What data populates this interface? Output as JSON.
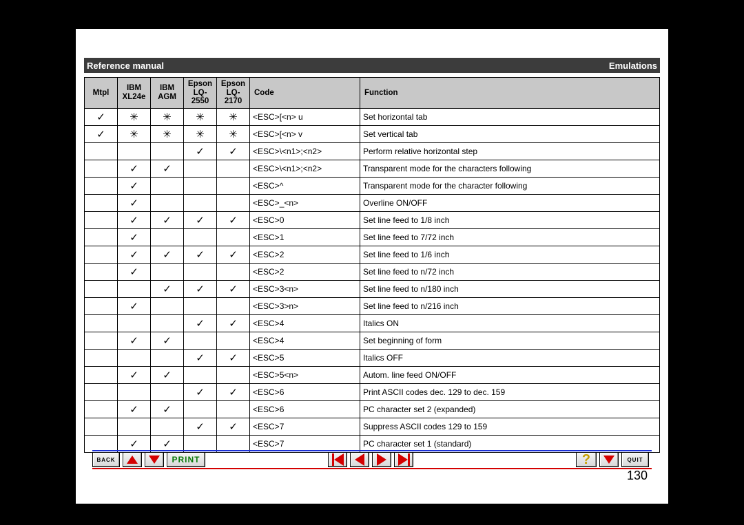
{
  "header": {
    "left": "Reference manual",
    "right": "Emulations"
  },
  "columns": [
    {
      "line1": "Mtpl",
      "line2": ""
    },
    {
      "line1": "IBM",
      "line2": "XL24e"
    },
    {
      "line1": "IBM",
      "line2": "AGM"
    },
    {
      "line1": "Epson",
      "line2": "LQ-2550"
    },
    {
      "line1": "Epson",
      "line2": "LQ-2170"
    },
    {
      "line1": "Code",
      "line2": ""
    },
    {
      "line1": "Function",
      "line2": ""
    }
  ],
  "legend": {
    "check": "✓",
    "star": "✳"
  },
  "rows": [
    {
      "m": [
        "c",
        "s",
        "s",
        "s",
        "s"
      ],
      "code": "<ESC>[<n> u",
      "func": "Set horizontal tab"
    },
    {
      "m": [
        "c",
        "s",
        "s",
        "s",
        "s"
      ],
      "code": "<ESC>[<n> v",
      "func": "Set vertical tab"
    },
    {
      "m": [
        "",
        "",
        "",
        "c",
        "c"
      ],
      "code": "<ESC>\\<n1>;<n2>",
      "func": "Perform relative horizontal step"
    },
    {
      "m": [
        "",
        "c",
        "c",
        "",
        ""
      ],
      "code": "<ESC>\\<n1>;<n2>",
      "func": "Transparent mode for the characters following"
    },
    {
      "m": [
        "",
        "c",
        "",
        "",
        ""
      ],
      "code": "<ESC>^",
      "func": "Transparent mode for the character following"
    },
    {
      "m": [
        "",
        "c",
        "",
        "",
        ""
      ],
      "code": "<ESC>_<n>",
      "func": "Overline ON/OFF"
    },
    {
      "m": [
        "",
        "c",
        "c",
        "c",
        "c"
      ],
      "code": "<ESC>0",
      "func": "Set line feed to 1/8 inch"
    },
    {
      "m": [
        "",
        "c",
        "",
        "",
        ""
      ],
      "code": "<ESC>1",
      "func": "Set line feed to 7/72 inch"
    },
    {
      "m": [
        "",
        "c",
        "c",
        "c",
        "c"
      ],
      "code": "<ESC>2",
      "func": "Set line feed to 1/6 inch"
    },
    {
      "m": [
        "",
        "c",
        "",
        "",
        ""
      ],
      "code": "<ESC>2",
      "func": "Set line feed to n/72 inch"
    },
    {
      "m": [
        "",
        "",
        "c",
        "c",
        "c"
      ],
      "code": "<ESC>3<n>",
      "func": "Set line feed to n/180 inch"
    },
    {
      "m": [
        "",
        "c",
        "",
        "",
        ""
      ],
      "code": "<ESC>3>n>",
      "func": "Set line feed to n/216 inch"
    },
    {
      "m": [
        "",
        "",
        "",
        "c",
        "c"
      ],
      "code": "<ESC>4",
      "func": "Italics ON"
    },
    {
      "m": [
        "",
        "c",
        "c",
        "",
        ""
      ],
      "code": "<ESC>4",
      "func": "Set beginning of form"
    },
    {
      "m": [
        "",
        "",
        "",
        "c",
        "c"
      ],
      "code": "<ESC>5",
      "func": "Italics OFF"
    },
    {
      "m": [
        "",
        "c",
        "c",
        "",
        ""
      ],
      "code": "<ESC>5<n>",
      "func": "Autom. line feed ON/OFF"
    },
    {
      "m": [
        "",
        "",
        "",
        "c",
        "c"
      ],
      "code": "<ESC>6",
      "func": "Print ASCII codes dec. 129 to dec. 159"
    },
    {
      "m": [
        "",
        "c",
        "c",
        "",
        ""
      ],
      "code": "<ESC>6",
      "func": "PC character set 2 (expanded)"
    },
    {
      "m": [
        "",
        "",
        "",
        "c",
        "c"
      ],
      "code": "<ESC>7",
      "func": "Suppress ASCII codes 129 to 159"
    },
    {
      "m": [
        "",
        "c",
        "c",
        "",
        ""
      ],
      "code": "<ESC>7",
      "func": "PC character set 1 (standard)"
    }
  ],
  "toolbar": {
    "back": "BACK",
    "print": "PRINT",
    "quit": "QUIT"
  },
  "page_number": "130"
}
